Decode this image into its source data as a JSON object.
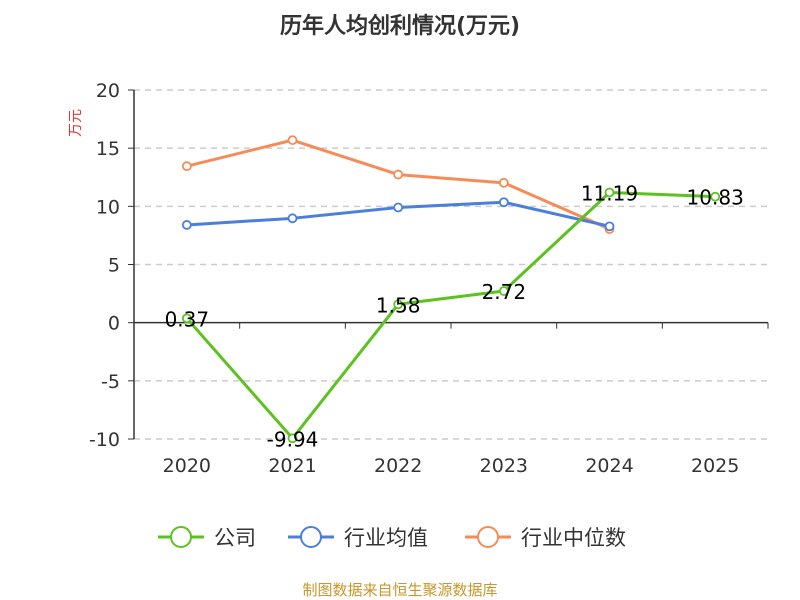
{
  "chart_data": {
    "type": "line",
    "title": "历年人均创利情况(万元)",
    "ylabel": "万元",
    "xlabel": "",
    "categories": [
      "2020",
      "2021",
      "2022",
      "2023",
      "2024",
      "2025"
    ],
    "ylim": [
      -10,
      20
    ],
    "yticks": [
      20,
      15,
      10,
      5,
      0,
      -5,
      -10
    ],
    "grid": true,
    "legend_position": "bottom",
    "series": [
      {
        "name": "公司",
        "color": "#5cc21f",
        "values": [
          0.37,
          -9.94,
          1.58,
          2.72,
          11.19,
          10.83
        ],
        "labels": [
          "0.37",
          "-9.94",
          "1.58",
          "2.72",
          "11.19",
          "10.83"
        ]
      },
      {
        "name": "行业均值",
        "color": "#4a7fdb",
        "values": [
          8.4,
          8.97,
          9.9,
          10.35,
          8.28,
          null
        ]
      },
      {
        "name": "行业中位数",
        "color": "#f58c57",
        "values": [
          13.45,
          15.69,
          12.73,
          12.02,
          8.05,
          null
        ]
      }
    ]
  },
  "source": "制图数据来自恒生聚源数据库"
}
